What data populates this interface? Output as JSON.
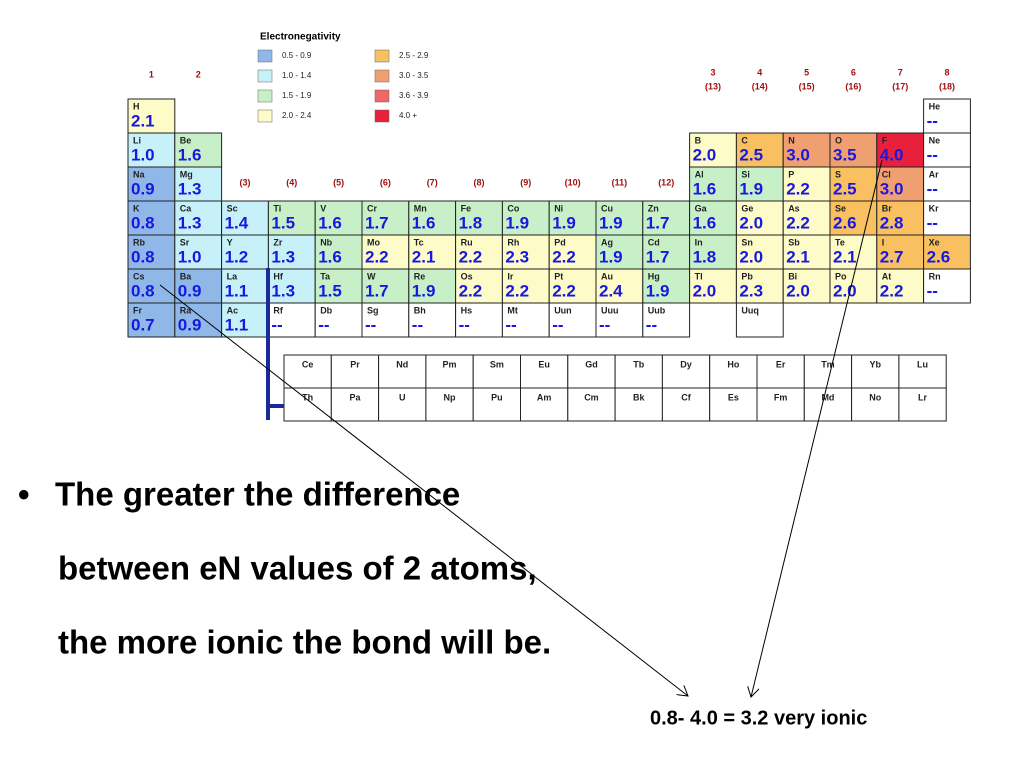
{
  "legend": {
    "title": "Electronegativity",
    "items": [
      {
        "label": "0.5 - 0.9",
        "color": "#8fb8e8"
      },
      {
        "label": "1.0 - 1.4",
        "color": "#c6f1f8"
      },
      {
        "label": "1.5 - 1.9",
        "color": "#c8f0c8"
      },
      {
        "label": "2.0 - 2.4",
        "color": "#fdfbc8"
      },
      {
        "label": "2.5 - 2.9",
        "color": "#f8c060"
      },
      {
        "label": "3.0 - 3.5",
        "color": "#f0a070"
      },
      {
        "label": "3.6 - 3.9",
        "color": "#f06868"
      },
      {
        "label": "4.0 +",
        "color": "#e8203c"
      }
    ]
  },
  "groups": [
    [
      "1"
    ],
    [
      "2"
    ],
    [
      "(3)"
    ],
    [
      "(4)"
    ],
    [
      "(5)"
    ],
    [
      "(6)"
    ],
    [
      "(7)"
    ],
    [
      "(8)"
    ],
    [
      "(9)"
    ],
    [
      "(10)"
    ],
    [
      "(11)"
    ],
    [
      "(12)"
    ],
    [
      "3",
      "(13)"
    ],
    [
      "4",
      "(14)"
    ],
    [
      "5",
      "(15)"
    ],
    [
      "6",
      "(16)"
    ],
    [
      "7",
      "(17)"
    ],
    [
      "8",
      "(18)"
    ]
  ],
  "rows": [
    [
      {
        "symbol": "H",
        "en": "2.1"
      },
      null,
      null,
      null,
      null,
      null,
      null,
      null,
      null,
      null,
      null,
      null,
      null,
      null,
      null,
      null,
      null,
      {
        "symbol": "He",
        "en": "--"
      }
    ],
    [
      {
        "symbol": "Li",
        "en": "1.0"
      },
      {
        "symbol": "Be",
        "en": "1.6"
      },
      null,
      null,
      null,
      null,
      null,
      null,
      null,
      null,
      null,
      null,
      {
        "symbol": "B",
        "en": "2.0"
      },
      {
        "symbol": "C",
        "en": "2.5"
      },
      {
        "symbol": "N",
        "en": "3.0"
      },
      {
        "symbol": "O",
        "en": "3.5"
      },
      {
        "symbol": "F",
        "en": "4.0"
      },
      {
        "symbol": "Ne",
        "en": "--"
      }
    ],
    [
      {
        "symbol": "Na",
        "en": "0.9"
      },
      {
        "symbol": "Mg",
        "en": "1.3"
      },
      null,
      null,
      null,
      null,
      null,
      null,
      null,
      null,
      null,
      null,
      {
        "symbol": "Al",
        "en": "1.6"
      },
      {
        "symbol": "Si",
        "en": "1.9"
      },
      {
        "symbol": "P",
        "en": "2.2"
      },
      {
        "symbol": "S",
        "en": "2.5"
      },
      {
        "symbol": "Cl",
        "en": "3.0"
      },
      {
        "symbol": "Ar",
        "en": "--"
      }
    ],
    [
      {
        "symbol": "K",
        "en": "0.8"
      },
      {
        "symbol": "Ca",
        "en": "1.3"
      },
      {
        "symbol": "Sc",
        "en": "1.4"
      },
      {
        "symbol": "Ti",
        "en": "1.5"
      },
      {
        "symbol": "V",
        "en": "1.6"
      },
      {
        "symbol": "Cr",
        "en": "1.7"
      },
      {
        "symbol": "Mn",
        "en": "1.6"
      },
      {
        "symbol": "Fe",
        "en": "1.8"
      },
      {
        "symbol": "Co",
        "en": "1.9"
      },
      {
        "symbol": "Ni",
        "en": "1.9"
      },
      {
        "symbol": "Cu",
        "en": "1.9"
      },
      {
        "symbol": "Zn",
        "en": "1.7"
      },
      {
        "symbol": "Ga",
        "en": "1.6"
      },
      {
        "symbol": "Ge",
        "en": "2.0"
      },
      {
        "symbol": "As",
        "en": "2.2"
      },
      {
        "symbol": "Se",
        "en": "2.6"
      },
      {
        "symbol": "Br",
        "en": "2.8"
      },
      {
        "symbol": "Kr",
        "en": "--"
      }
    ],
    [
      {
        "symbol": "Rb",
        "en": "0.8"
      },
      {
        "symbol": "Sr",
        "en": "1.0"
      },
      {
        "symbol": "Y",
        "en": "1.2"
      },
      {
        "symbol": "Zr",
        "en": "1.3"
      },
      {
        "symbol": "Nb",
        "en": "1.6"
      },
      {
        "symbol": "Mo",
        "en": "2.2"
      },
      {
        "symbol": "Tc",
        "en": "2.1"
      },
      {
        "symbol": "Ru",
        "en": "2.2"
      },
      {
        "symbol": "Rh",
        "en": "2.3"
      },
      {
        "symbol": "Pd",
        "en": "2.2"
      },
      {
        "symbol": "Ag",
        "en": "1.9"
      },
      {
        "symbol": "Cd",
        "en": "1.7"
      },
      {
        "symbol": "In",
        "en": "1.8"
      },
      {
        "symbol": "Sn",
        "en": "2.0"
      },
      {
        "symbol": "Sb",
        "en": "2.1"
      },
      {
        "symbol": "Te",
        "en": "2.1"
      },
      {
        "symbol": "I",
        "en": "2.7"
      },
      {
        "symbol": "Xe",
        "en": "2.6"
      }
    ],
    [
      {
        "symbol": "Cs",
        "en": "0.8"
      },
      {
        "symbol": "Ba",
        "en": "0.9"
      },
      {
        "symbol": "La",
        "en": "1.1"
      },
      {
        "symbol": "Hf",
        "en": "1.3"
      },
      {
        "symbol": "Ta",
        "en": "1.5"
      },
      {
        "symbol": "W",
        "en": "1.7"
      },
      {
        "symbol": "Re",
        "en": "1.9"
      },
      {
        "symbol": "Os",
        "en": "2.2"
      },
      {
        "symbol": "Ir",
        "en": "2.2"
      },
      {
        "symbol": "Pt",
        "en": "2.2"
      },
      {
        "symbol": "Au",
        "en": "2.4"
      },
      {
        "symbol": "Hg",
        "en": "1.9"
      },
      {
        "symbol": "Tl",
        "en": "2.0"
      },
      {
        "symbol": "Pb",
        "en": "2.3"
      },
      {
        "symbol": "Bi",
        "en": "2.0"
      },
      {
        "symbol": "Po",
        "en": "2.0"
      },
      {
        "symbol": "At",
        "en": "2.2"
      },
      {
        "symbol": "Rn",
        "en": "--"
      }
    ],
    [
      {
        "symbol": "Fr",
        "en": "0.7"
      },
      {
        "symbol": "Ra",
        "en": "0.9"
      },
      {
        "symbol": "Ac",
        "en": "1.1"
      },
      {
        "symbol": "Rf",
        "en": "--"
      },
      {
        "symbol": "Db",
        "en": "--"
      },
      {
        "symbol": "Sg",
        "en": "--"
      },
      {
        "symbol": "Bh",
        "en": "--"
      },
      {
        "symbol": "Hs",
        "en": "--"
      },
      {
        "symbol": "Mt",
        "en": "--"
      },
      {
        "symbol": "Uun",
        "en": "--"
      },
      {
        "symbol": "Uuu",
        "en": "--"
      },
      {
        "symbol": "Uub",
        "en": "--"
      },
      null,
      {
        "symbol": "Uuq"
      },
      null,
      null,
      null,
      null
    ]
  ],
  "f_block": [
    [
      "Ce",
      "Pr",
      "Nd",
      "Pm",
      "Sm",
      "Eu",
      "Gd",
      "Tb",
      "Dy",
      "Ho",
      "Er",
      "Tm",
      "Yb",
      "Lu"
    ],
    [
      "Th",
      "Pa",
      "U",
      "Np",
      "Pu",
      "Am",
      "Cm",
      "Bk",
      "Cf",
      "Es",
      "Fm",
      "Md",
      "No",
      "Lr"
    ]
  ],
  "bullet": [
    "The greater the difference",
    "between eN values of 2 atoms,",
    "the more ionic the bond will be."
  ],
  "calculation": "0.8- 4.0 = 3.2 very ionic"
}
